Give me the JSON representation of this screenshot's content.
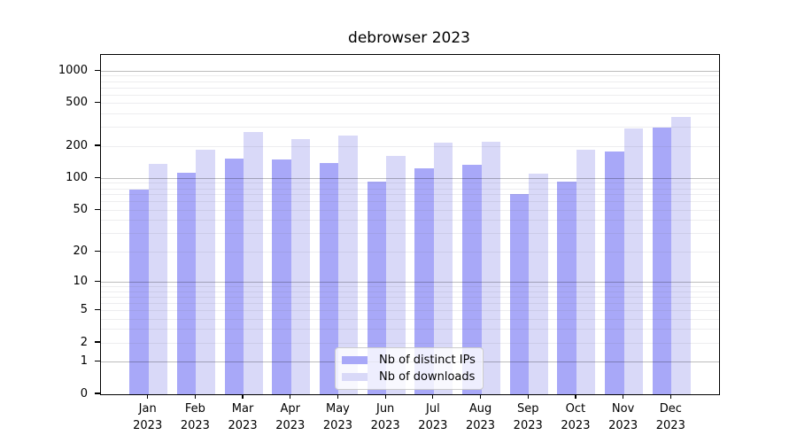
{
  "chart_data": {
    "type": "bar",
    "title": "debrowser 2023",
    "categories": [
      "Jan 2023",
      "Feb 2023",
      "Mar 2023",
      "Apr 2023",
      "May 2023",
      "Jun 2023",
      "Jul 2023",
      "Aug 2023",
      "Sep 2023",
      "Oct 2023",
      "Nov 2023",
      "Dec 2023"
    ],
    "series": [
      {
        "name": "Nb of distinct IPs",
        "color": "#a8a8f8",
        "values": [
          78,
          113,
          152,
          149,
          140,
          94,
          124,
          133,
          71,
          94,
          178,
          300
        ]
      },
      {
        "name": "Nb of downloads",
        "color": "#d9d9f8",
        "values": [
          137,
          185,
          271,
          232,
          251,
          162,
          215,
          219,
          110,
          185,
          292,
          378
        ]
      }
    ],
    "y_scale": "log(v+1)",
    "y_ticks": [
      0,
      1,
      2,
      5,
      10,
      20,
      50,
      100,
      200,
      500,
      1000
    ],
    "y_major_gridlines": [
      1,
      10,
      100,
      1000
    ],
    "y_minor_gridlines": [
      2,
      3,
      4,
      5,
      6,
      7,
      8,
      9,
      20,
      30,
      40,
      50,
      60,
      70,
      80,
      90,
      200,
      300,
      400,
      500,
      600,
      700,
      800,
      900
    ],
    "y_axis_max": 1414,
    "xlabel": "",
    "ylabel": "",
    "grid": true,
    "legend_position": "lower center"
  }
}
